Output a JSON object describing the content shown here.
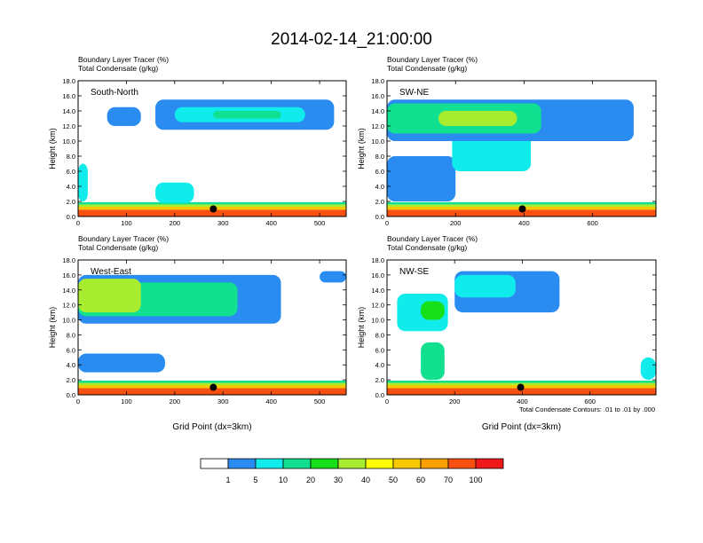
{
  "page_title": "2014-02-14_21:00:00",
  "colorbar": {
    "colors": [
      "#ffffff",
      "#2a8cf0",
      "#10ecec",
      "#10e090",
      "#18e018",
      "#a8ec30",
      "#ffff00",
      "#f8c800",
      "#f8a000",
      "#f85010",
      "#f01818"
    ],
    "labels": [
      "1",
      "5",
      "10",
      "20",
      "30",
      "40",
      "50",
      "60",
      "70",
      "100"
    ]
  },
  "contour_note": "Total Condensate Contours: .01 to .01 by .000",
  "chart_data": [
    {
      "type": "heatmap",
      "panel_label": "South-North",
      "title_lines": [
        "Boundary Layer Tracer    (%)",
        "Total Condensate    (g/kg)"
      ],
      "ylabel": "Height (km)",
      "xlabel": "",
      "xlim": [
        0,
        555
      ],
      "ylim": [
        0,
        18
      ],
      "x_ticks": [
        0,
        100,
        200,
        300,
        400,
        500
      ],
      "y_ticks": [
        "0.0",
        "2.0",
        "4.0",
        "6.0",
        "8.0",
        "10.0",
        "12.0",
        "14.0",
        "16.0",
        "18.0"
      ],
      "marker": {
        "x": 280,
        "y": 1.0
      },
      "bands": [
        {
          "x": [
            0,
            555
          ],
          "y": [
            0,
            0.9
          ],
          "level": 9
        },
        {
          "x": [
            0,
            555
          ],
          "y": [
            0.9,
            1.3
          ],
          "level": 7
        },
        {
          "x": [
            0,
            555
          ],
          "y": [
            1.3,
            1.6
          ],
          "level": 5
        },
        {
          "x": [
            0,
            555
          ],
          "y": [
            1.6,
            1.9
          ],
          "level": 3
        },
        {
          "x": [
            160,
            240
          ],
          "y": [
            1.8,
            4.5
          ],
          "level": 2
        },
        {
          "x": [
            0,
            20
          ],
          "y": [
            2.0,
            7.0
          ],
          "level": 2
        },
        {
          "x": [
            60,
            130
          ],
          "y": [
            12.0,
            14.5
          ],
          "level": 1
        },
        {
          "x": [
            160,
            530
          ],
          "y": [
            11.5,
            15.5
          ],
          "level": 1
        },
        {
          "x": [
            200,
            470
          ],
          "y": [
            12.5,
            14.5
          ],
          "level": 2
        },
        {
          "x": [
            280,
            420
          ],
          "y": [
            13.0,
            14.0
          ],
          "level": 3
        }
      ]
    },
    {
      "type": "heatmap",
      "panel_label": "SW-NE",
      "title_lines": [
        "Boundary Layer Tracer    (%)",
        "Total Condensate    (g/kg)"
      ],
      "ylabel": "Height (km)",
      "xlabel": "",
      "xlim": [
        0,
        785
      ],
      "ylim": [
        0,
        18
      ],
      "x_ticks": [
        0,
        200,
        400,
        600
      ],
      "y_ticks": [
        "0.0",
        "2.0",
        "4.0",
        "6.0",
        "8.0",
        "10.0",
        "12.0",
        "14.0",
        "16.0",
        "18.0"
      ],
      "marker": {
        "x": 395,
        "y": 1.0
      },
      "bands": [
        {
          "x": [
            0,
            785
          ],
          "y": [
            0,
            0.9
          ],
          "level": 9
        },
        {
          "x": [
            0,
            785
          ],
          "y": [
            0.9,
            1.3
          ],
          "level": 7
        },
        {
          "x": [
            0,
            785
          ],
          "y": [
            1.3,
            1.6
          ],
          "level": 5
        },
        {
          "x": [
            0,
            785
          ],
          "y": [
            1.6,
            1.9
          ],
          "level": 3
        },
        {
          "x": [
            0,
            200
          ],
          "y": [
            2.0,
            8.0
          ],
          "level": 1
        },
        {
          "x": [
            190,
            420
          ],
          "y": [
            6.0,
            11.0
          ],
          "level": 2
        },
        {
          "x": [
            0,
            720
          ],
          "y": [
            10.0,
            15.5
          ],
          "level": 1
        },
        {
          "x": [
            0,
            450
          ],
          "y": [
            11.0,
            15.0
          ],
          "level": 3
        },
        {
          "x": [
            150,
            380
          ],
          "y": [
            12.0,
            14.0
          ],
          "level": 5
        }
      ]
    },
    {
      "type": "heatmap",
      "panel_label": "West-East",
      "title_lines": [
        "Boundary Layer Tracer    (%)",
        "Total Condensate    (g/kg)"
      ],
      "ylabel": "Height (km)",
      "xlabel": "Grid Point (dx=3km)",
      "xlim": [
        0,
        555
      ],
      "ylim": [
        0,
        18
      ],
      "x_ticks": [
        0,
        100,
        200,
        300,
        400,
        500
      ],
      "y_ticks": [
        "0.0",
        "2.0",
        "4.0",
        "6.0",
        "8.0",
        "10.0",
        "12.0",
        "14.0",
        "16.0",
        "18.0"
      ],
      "marker": {
        "x": 280,
        "y": 1.0
      },
      "bands": [
        {
          "x": [
            0,
            555
          ],
          "y": [
            0,
            0.9
          ],
          "level": 9
        },
        {
          "x": [
            0,
            555
          ],
          "y": [
            0.9,
            1.3
          ],
          "level": 7
        },
        {
          "x": [
            0,
            555
          ],
          "y": [
            1.3,
            1.6
          ],
          "level": 5
        },
        {
          "x": [
            0,
            555
          ],
          "y": [
            1.6,
            1.9
          ],
          "level": 3
        },
        {
          "x": [
            0,
            180
          ],
          "y": [
            3.0,
            5.5
          ],
          "level": 1
        },
        {
          "x": [
            0,
            420
          ],
          "y": [
            9.5,
            16.0
          ],
          "level": 1
        },
        {
          "x": [
            0,
            330
          ],
          "y": [
            10.5,
            15.0
          ],
          "level": 3
        },
        {
          "x": [
            0,
            130
          ],
          "y": [
            11.0,
            15.5
          ],
          "level": 5
        },
        {
          "x": [
            500,
            555
          ],
          "y": [
            15.0,
            16.5
          ],
          "level": 1
        }
      ]
    },
    {
      "type": "heatmap",
      "panel_label": "NW-SE",
      "title_lines": [
        "Boundary Layer Tracer    (%)",
        "Total Condensate    (g/kg)"
      ],
      "ylabel": "Height (km)",
      "xlabel": "Grid Point (dx=3km)",
      "xlim": [
        0,
        795
      ],
      "ylim": [
        0,
        18
      ],
      "x_ticks": [
        0,
        200,
        400,
        600
      ],
      "y_ticks": [
        "0.0",
        "2.0",
        "4.0",
        "6.0",
        "8.0",
        "10.0",
        "12.0",
        "14.0",
        "16.0",
        "18.0"
      ],
      "marker": {
        "x": 395,
        "y": 1.0
      },
      "bands": [
        {
          "x": [
            0,
            795
          ],
          "y": [
            0,
            0.9
          ],
          "level": 9
        },
        {
          "x": [
            0,
            795
          ],
          "y": [
            0.9,
            1.3
          ],
          "level": 7
        },
        {
          "x": [
            0,
            795
          ],
          "y": [
            1.3,
            1.6
          ],
          "level": 5
        },
        {
          "x": [
            0,
            795
          ],
          "y": [
            1.6,
            1.9
          ],
          "level": 3
        },
        {
          "x": [
            30,
            180
          ],
          "y": [
            8.5,
            13.5
          ],
          "level": 2
        },
        {
          "x": [
            100,
            170
          ],
          "y": [
            10.0,
            12.5
          ],
          "level": 4
        },
        {
          "x": [
            100,
            170
          ],
          "y": [
            2.0,
            7.0
          ],
          "level": 3
        },
        {
          "x": [
            200,
            510
          ],
          "y": [
            11.0,
            16.5
          ],
          "level": 1
        },
        {
          "x": [
            200,
            380
          ],
          "y": [
            13.0,
            16.0
          ],
          "level": 2
        },
        {
          "x": [
            750,
            795
          ],
          "y": [
            2.0,
            5.0
          ],
          "level": 2
        }
      ]
    }
  ]
}
